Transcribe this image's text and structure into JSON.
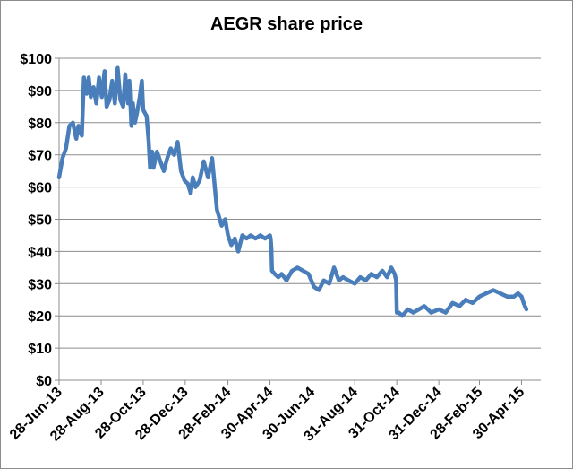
{
  "chart_data": {
    "type": "line",
    "title": "AEGR share price",
    "xlabel": "",
    "ylabel": "",
    "ylim": [
      0,
      100
    ],
    "ytick_labels": [
      "$0",
      "$10",
      "$20",
      "$30",
      "$40",
      "$50",
      "$60",
      "$70",
      "$80",
      "$90",
      "$100"
    ],
    "xtick_labels": [
      "28-Jun-13",
      "28-Aug-13",
      "28-Oct-13",
      "28-Dec-13",
      "28-Feb-14",
      "30-Apr-14",
      "30-Jun-14",
      "31-Aug-14",
      "31-Oct-14",
      "31-Dec-14",
      "28-Feb-15",
      "30-Apr-15"
    ],
    "x_range": [
      "2013-06-28",
      "2015-05-07"
    ],
    "grid": true,
    "legend": "none",
    "line_color": "#4a7ebb",
    "series": [
      {
        "name": "",
        "x": [
          "2013-06-28",
          "2013-07-03",
          "2013-07-08",
          "2013-07-13",
          "2013-07-18",
          "2013-07-23",
          "2013-07-26",
          "2013-07-31",
          "2013-08-03",
          "2013-08-07",
          "2013-08-10",
          "2013-08-13",
          "2013-08-17",
          "2013-08-21",
          "2013-08-25",
          "2013-08-29",
          "2013-09-02",
          "2013-09-05",
          "2013-09-09",
          "2013-09-13",
          "2013-09-17",
          "2013-09-21",
          "2013-09-25",
          "2013-09-29",
          "2013-10-02",
          "2013-10-04",
          "2013-10-06",
          "2013-10-08",
          "2013-10-11",
          "2013-10-13",
          "2013-10-16",
          "2013-10-19",
          "2013-10-23",
          "2013-10-26",
          "2013-10-28",
          "2013-11-02",
          "2013-11-05",
          "2013-11-07",
          "2013-11-10",
          "2013-11-12",
          "2013-11-17",
          "2013-11-22",
          "2013-11-27",
          "2013-12-02",
          "2013-12-07",
          "2013-12-12",
          "2013-12-17",
          "2013-12-22",
          "2013-12-27",
          "2014-01-01",
          "2014-01-05",
          "2014-01-08",
          "2014-01-12",
          "2014-01-18",
          "2014-01-24",
          "2014-01-30",
          "2014-02-05",
          "2014-02-12",
          "2014-02-19",
          "2014-02-24",
          "2014-02-28",
          "2014-03-05",
          "2014-03-10",
          "2014-03-15",
          "2014-03-21",
          "2014-03-27",
          "2014-04-02",
          "2014-04-09",
          "2014-04-16",
          "2014-04-23",
          "2014-04-30",
          "2014-05-01",
          "2014-05-02",
          "2014-05-03",
          "2014-05-07",
          "2014-05-12",
          "2014-05-17",
          "2014-05-24",
          "2014-06-01",
          "2014-06-09",
          "2014-06-17",
          "2014-06-25",
          "2014-07-03",
          "2014-07-10",
          "2014-07-17",
          "2014-07-25",
          "2014-08-01",
          "2014-08-08",
          "2014-08-14",
          "2014-08-22",
          "2014-08-31",
          "2014-09-08",
          "2014-09-16",
          "2014-09-24",
          "2014-10-02",
          "2014-10-10",
          "2014-10-17",
          "2014-10-23",
          "2014-10-28",
          "2014-10-30",
          "2014-10-31",
          "2014-11-03",
          "2014-11-08",
          "2014-11-16",
          "2014-11-24",
          "2014-12-02",
          "2014-12-10",
          "2014-12-20",
          "2014-12-31",
          "2015-01-10",
          "2015-01-20",
          "2015-01-30",
          "2015-02-08",
          "2015-02-18",
          "2015-02-28",
          "2015-03-10",
          "2015-03-20",
          "2015-03-30",
          "2015-04-09",
          "2015-04-19",
          "2015-04-25",
          "2015-04-30",
          "2015-05-03",
          "2015-05-05",
          "2015-05-07"
        ],
        "values": [
          63,
          69,
          72,
          79,
          80,
          75,
          79,
          76,
          94,
          89,
          94,
          88,
          91,
          86,
          94,
          88,
          96,
          85,
          87,
          93,
          86,
          97,
          87,
          85,
          95,
          90,
          86,
          93,
          79,
          86,
          80,
          83,
          88,
          93,
          84,
          82,
          74,
          66,
          71,
          66,
          71,
          68,
          65,
          69,
          72,
          70,
          74,
          65,
          62,
          61,
          58,
          63,
          60,
          62,
          68,
          63,
          69,
          53,
          48,
          50,
          45,
          42,
          44,
          40,
          45,
          44,
          45,
          44,
          45,
          44,
          45,
          44,
          41,
          34,
          33,
          32,
          33,
          31,
          34,
          35,
          34,
          33,
          29,
          28,
          31,
          30,
          35,
          31,
          32,
          31,
          30,
          32,
          31,
          33,
          32,
          34,
          32,
          35,
          33,
          31,
          21,
          21,
          20,
          22,
          21,
          22,
          23,
          21,
          22,
          21,
          24,
          23,
          25,
          24,
          26,
          27,
          28,
          27,
          26,
          26,
          27,
          26,
          24,
          23,
          22
        ]
      }
    ]
  }
}
